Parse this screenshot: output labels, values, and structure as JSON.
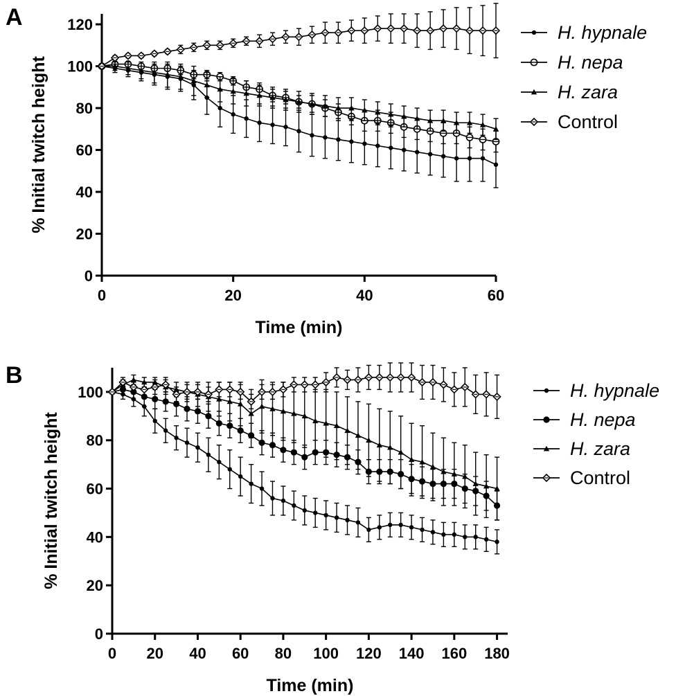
{
  "chart_data": [
    {
      "panel": "A",
      "type": "line",
      "xlabel": "Time (min)",
      "ylabel": "% Initial twitch height",
      "xlim": [
        0,
        60
      ],
      "ylim": [
        0,
        125
      ],
      "xticks": [
        0,
        20,
        40,
        60
      ],
      "yticks": [
        0,
        20,
        40,
        60,
        80,
        100,
        120
      ],
      "grid": false,
      "legend_position": "right",
      "x": [
        0,
        2,
        4,
        6,
        8,
        10,
        12,
        14,
        16,
        18,
        20,
        22,
        24,
        26,
        28,
        30,
        32,
        34,
        36,
        38,
        40,
        42,
        44,
        46,
        48,
        50,
        52,
        54,
        56,
        58,
        60
      ],
      "series": [
        {
          "name": "H. hypnale",
          "marker": "small-dot",
          "values": [
            100,
            99,
            98,
            97,
            96,
            95,
            94,
            91,
            85,
            80,
            77,
            75,
            73,
            72,
            71,
            69,
            67,
            66,
            65,
            64,
            63,
            62,
            61,
            60,
            59,
            58,
            57,
            56,
            56,
            56,
            53
          ],
          "errors": [
            0,
            2,
            3,
            4,
            5,
            6,
            6,
            7,
            8,
            9,
            9,
            9,
            9,
            9,
            9,
            10,
            10,
            10,
            10,
            10,
            10,
            10,
            10,
            10,
            10,
            10,
            10,
            11,
            11,
            11,
            11
          ]
        },
        {
          "name": "H. nepa",
          "marker": "square-dot",
          "values": [
            100,
            101,
            101,
            100,
            99,
            99,
            98,
            96,
            96,
            95,
            93,
            90,
            89,
            86,
            85,
            83,
            82,
            80,
            78,
            76,
            74,
            74,
            73,
            71,
            70,
            69,
            68,
            68,
            66,
            65,
            64
          ],
          "errors": [
            0,
            1,
            1,
            1,
            1,
            1,
            2,
            2,
            2,
            2,
            2,
            3,
            3,
            3,
            3,
            3,
            4,
            4,
            4,
            4,
            5,
            5,
            5,
            5,
            5,
            5,
            5,
            5,
            5,
            5,
            5
          ]
        },
        {
          "name": "H. zara",
          "marker": "triangle",
          "values": [
            100,
            100,
            99,
            98,
            97,
            96,
            95,
            93,
            91,
            89,
            88,
            87,
            86,
            85,
            84,
            83,
            82,
            81,
            80,
            80,
            79,
            78,
            77,
            76,
            75,
            74,
            74,
            73,
            73,
            72,
            70
          ],
          "errors": [
            0,
            2,
            3,
            4,
            5,
            6,
            6,
            7,
            6,
            6,
            6,
            6,
            5,
            5,
            5,
            5,
            5,
            5,
            5,
            5,
            5,
            5,
            5,
            5,
            5,
            5,
            5,
            5,
            5,
            5,
            5
          ]
        },
        {
          "name": "Control",
          "marker": "diamond",
          "values": [
            100,
            104,
            105,
            105,
            106,
            107,
            108,
            109,
            110,
            110,
            111,
            112,
            112,
            113,
            114,
            114,
            115,
            116,
            116,
            117,
            117,
            118,
            118,
            118,
            117,
            117,
            118,
            118,
            117,
            117,
            117
          ],
          "errors": [
            0,
            1,
            1,
            1,
            1,
            1,
            2,
            2,
            2,
            2,
            2,
            2,
            3,
            3,
            3,
            4,
            4,
            5,
            5,
            5,
            6,
            6,
            7,
            7,
            8,
            9,
            9,
            10,
            11,
            12,
            13
          ]
        }
      ]
    },
    {
      "panel": "B",
      "type": "line",
      "xlabel": "Time (min)",
      "ylabel": "% Initial twitch height",
      "xlim": [
        0,
        185
      ],
      "ylim": [
        0,
        110
      ],
      "xticks": [
        0,
        20,
        40,
        60,
        80,
        100,
        120,
        140,
        160,
        180
      ],
      "yticks": [
        0,
        20,
        40,
        60,
        80,
        100
      ],
      "grid": false,
      "legend_position": "right",
      "x": [
        0,
        5,
        10,
        15,
        20,
        25,
        30,
        35,
        40,
        45,
        50,
        55,
        60,
        65,
        70,
        75,
        80,
        85,
        90,
        95,
        100,
        105,
        110,
        115,
        120,
        125,
        130,
        135,
        140,
        145,
        150,
        155,
        160,
        165,
        170,
        175,
        180
      ],
      "series": [
        {
          "name": "H. hypnale",
          "marker": "small-dot",
          "values": [
            100,
            99,
            97,
            94,
            88,
            84,
            81,
            79,
            77,
            74,
            71,
            68,
            65,
            62,
            60,
            56,
            55,
            53,
            51,
            50,
            49,
            48,
            47,
            46,
            43,
            44,
            45,
            45,
            44,
            43,
            42,
            41,
            41,
            40,
            40,
            39,
            38
          ],
          "errors": [
            0,
            2,
            3,
            4,
            5,
            5,
            5,
            6,
            6,
            7,
            7,
            8,
            8,
            8,
            7,
            7,
            6,
            6,
            6,
            6,
            6,
            6,
            6,
            6,
            5,
            5,
            5,
            5,
            5,
            5,
            5,
            5,
            5,
            5,
            5,
            5,
            5
          ]
        },
        {
          "name": "H. nepa",
          "marker": "large-dot",
          "values": [
            100,
            101,
            100,
            98,
            97,
            96,
            95,
            93,
            92,
            90,
            87,
            86,
            84,
            82,
            79,
            78,
            76,
            75,
            73,
            75,
            75,
            74,
            73,
            71,
            67,
            67,
            67,
            66,
            64,
            63,
            62,
            62,
            62,
            60,
            59,
            57,
            53
          ],
          "errors": [
            0,
            2,
            3,
            4,
            4,
            4,
            5,
            5,
            5,
            5,
            5,
            5,
            5,
            5,
            5,
            5,
            5,
            5,
            5,
            5,
            5,
            5,
            5,
            5,
            5,
            5,
            5,
            6,
            6,
            6,
            6,
            6,
            6,
            6,
            6,
            6,
            6
          ]
        },
        {
          "name": "H. zara",
          "marker": "triangle",
          "values": [
            100,
            103,
            105,
            104,
            104,
            102,
            101,
            100,
            99,
            98,
            97,
            96,
            95,
            91,
            94,
            93,
            92,
            91,
            90,
            88,
            87,
            86,
            84,
            82,
            80,
            78,
            77,
            75,
            72,
            71,
            69,
            67,
            66,
            65,
            62,
            61,
            60
          ],
          "errors": [
            0,
            2,
            2,
            2,
            2,
            3,
            3,
            4,
            5,
            6,
            7,
            8,
            9,
            10,
            11,
            11,
            12,
            12,
            13,
            13,
            14,
            14,
            14,
            14,
            15,
            15,
            15,
            15,
            15,
            15,
            14,
            14,
            13,
            13,
            13,
            13,
            13
          ]
        },
        {
          "name": "Control",
          "marker": "diamond",
          "values": [
            100,
            104,
            102,
            101,
            102,
            103,
            99,
            100,
            100,
            99,
            101,
            101,
            100,
            96,
            100,
            100,
            101,
            103,
            103,
            103,
            104,
            106,
            105,
            105,
            106,
            106,
            106,
            106,
            106,
            104,
            104,
            103,
            101,
            102,
            99,
            99,
            98
          ],
          "errors": [
            0,
            2,
            2,
            3,
            3,
            3,
            3,
            3,
            3,
            3,
            3,
            3,
            3,
            3,
            3,
            3,
            3,
            3,
            3,
            3,
            4,
            4,
            4,
            5,
            5,
            5,
            6,
            6,
            6,
            7,
            7,
            7,
            7,
            8,
            8,
            9,
            9
          ]
        }
      ]
    }
  ]
}
